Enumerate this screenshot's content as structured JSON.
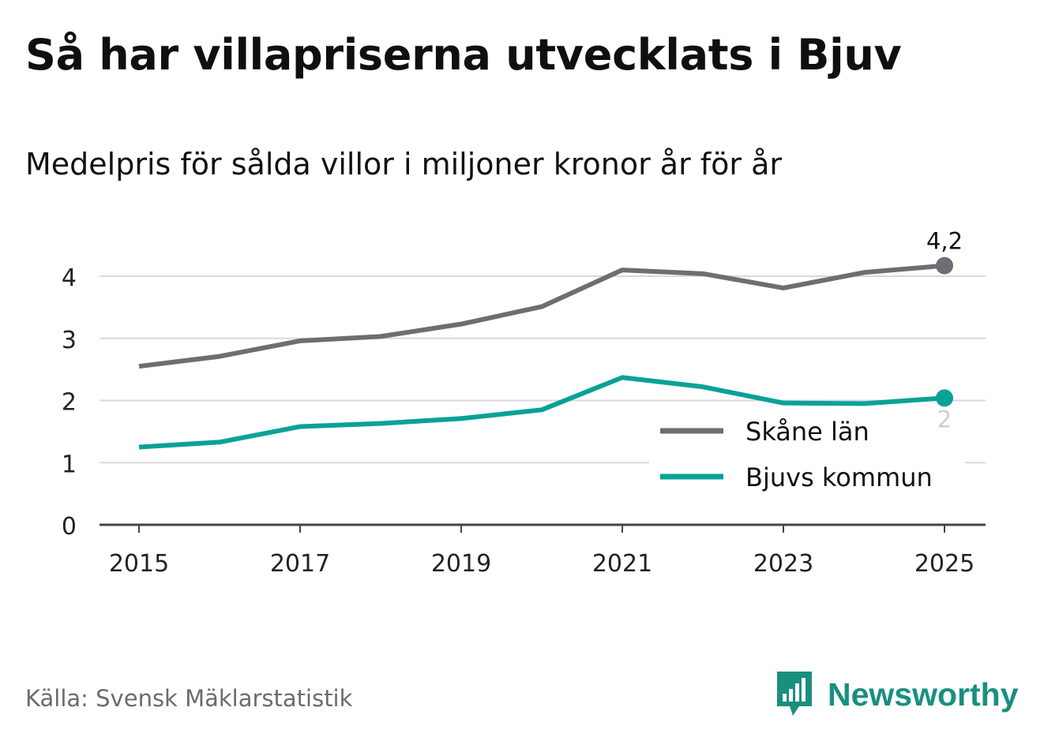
{
  "title": "Så har villapriserna utvecklats i Bjuv",
  "subtitle": "Medelpris för sålda villor i miljoner kronor år för år",
  "source": "Källa: Svensk Mäklarstatistik",
  "brand": "Newsworthy",
  "colors": {
    "skane": "#6e6d73",
    "bjuv": "#0aa197",
    "grid": "#d9d9d9",
    "axis": "#444444",
    "end_label_bjuv": "#cfcfcf",
    "brand": "#1a8f7f"
  },
  "chart_data": {
    "type": "line",
    "x": [
      2015,
      2016,
      2017,
      2018,
      2019,
      2020,
      2021,
      2022,
      2023,
      2024,
      2025
    ],
    "x_ticks": [
      "2015",
      "2017",
      "2019",
      "2021",
      "2023",
      "2025"
    ],
    "y_ticks": [
      "0",
      "1",
      "2",
      "3",
      "4"
    ],
    "ylim": [
      0,
      4.5
    ],
    "xlim": [
      2014.5,
      2025.5
    ],
    "grid": true,
    "legend_position": "bottom-right",
    "series": [
      {
        "name": "Skåne län",
        "values": [
          2.55,
          2.71,
          2.96,
          3.03,
          3.23,
          3.51,
          4.1,
          4.04,
          3.81,
          4.06,
          4.17
        ],
        "end_label": "4,2"
      },
      {
        "name": "Bjuvs kommun",
        "values": [
          1.25,
          1.33,
          1.58,
          1.63,
          1.71,
          1.85,
          2.37,
          2.22,
          1.96,
          1.95,
          2.04
        ],
        "end_label": "2"
      }
    ]
  }
}
